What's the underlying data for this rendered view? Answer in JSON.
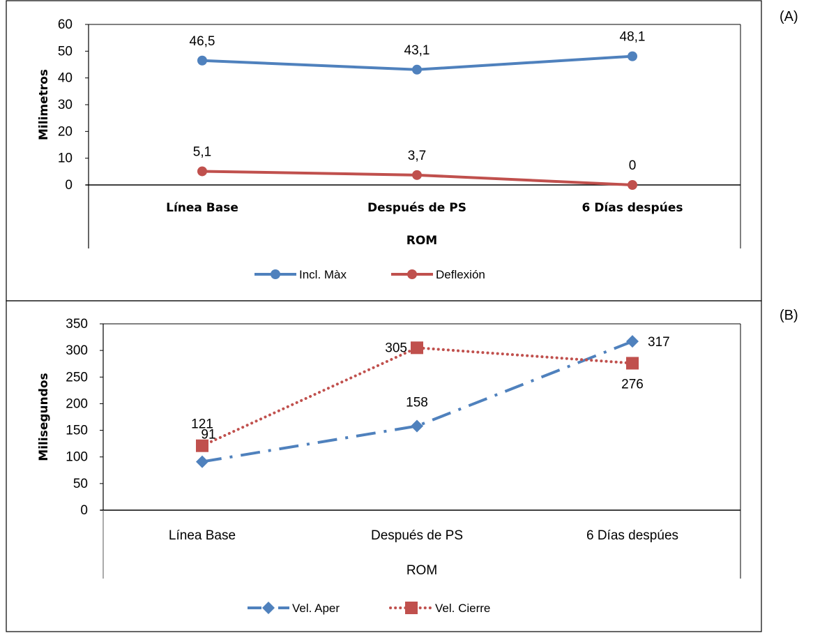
{
  "panels": [
    {
      "tag": "(A)"
    },
    {
      "tag": "(B)"
    }
  ],
  "chart_data": [
    {
      "type": "line",
      "title": "",
      "categories": [
        "Línea Base",
        "Después de PS",
        "6 Días despúes"
      ],
      "xlabel": "ROM",
      "ylabel": "Milimetros",
      "ylim": [
        0,
        60
      ],
      "yticks": [
        0,
        10,
        20,
        30,
        40,
        50,
        60
      ],
      "grid": false,
      "legend": "bottom",
      "series": [
        {
          "name": "Incl. Màx",
          "values": [
            46.5,
            43.1,
            48.1
          ],
          "labels": [
            "46,5",
            "43,1",
            "48,1"
          ],
          "color": "#4f81bd",
          "marker": "circle",
          "dash": "solid"
        },
        {
          "name": "Deflexión",
          "values": [
            5.1,
            3.7,
            0
          ],
          "labels": [
            "5,1",
            "3,7",
            "0"
          ],
          "color": "#c0504d",
          "marker": "circle",
          "dash": "solid"
        }
      ]
    },
    {
      "type": "line",
      "title": "",
      "categories": [
        "Línea Base",
        "Después de PS",
        "6 Días despúes"
      ],
      "xlabel": "ROM",
      "ylabel": "Milisegundos",
      "ylim": [
        0,
        350
      ],
      "yticks": [
        0,
        50,
        100,
        150,
        200,
        250,
        300,
        350
      ],
      "grid": false,
      "legend": "bottom",
      "series": [
        {
          "name": "Vel. Aper",
          "values": [
            91,
            158,
            317
          ],
          "labels": [
            "91",
            "158",
            "317"
          ],
          "color": "#4f81bd",
          "marker": "diamond",
          "dash": "dash-dot"
        },
        {
          "name": "Vel. Cierre",
          "values": [
            121,
            305,
            276
          ],
          "labels": [
            "121",
            "305",
            "276"
          ],
          "color": "#c0504d",
          "marker": "square",
          "dash": "dotted"
        }
      ]
    }
  ]
}
